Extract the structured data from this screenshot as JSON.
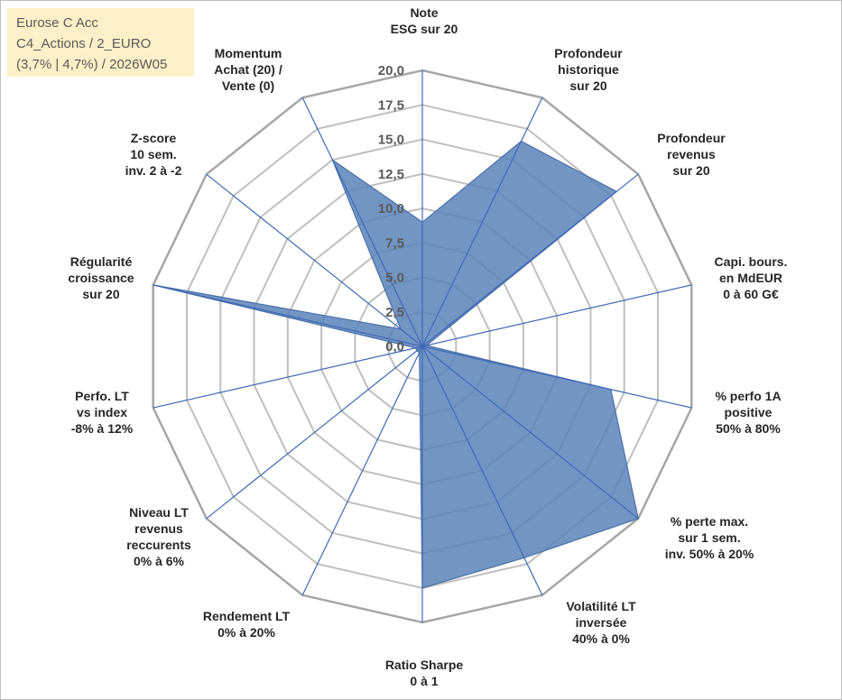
{
  "title": {
    "line1": "Eurose C Acc",
    "line2": "C4_Actions / 2_EURO",
    "line3": "(3,7% | 4,7%) / 2026W05"
  },
  "chart_data": {
    "type": "radar",
    "title": "Eurose C Acc",
    "rmin": 0,
    "rmax": 20,
    "ticks": [
      "0,0",
      "2,5",
      "5,0",
      "7,5",
      "10,0",
      "12,5",
      "15,0",
      "17,5",
      "20,0"
    ],
    "axes": [
      {
        "label": [
          "Note",
          "ESG sur 20"
        ],
        "value": 9.0
      },
      {
        "label": [
          "Profondeur",
          "historique",
          "sur 20"
        ],
        "value": 16.5
      },
      {
        "label": [
          "Profondeur",
          "revenus",
          "sur 20"
        ],
        "value": 18.0
      },
      {
        "label": [
          "Capi. bours.",
          "en MdEUR",
          "0 à 60 G€"
        ],
        "value": 0.3
      },
      {
        "label": [
          "% perfo 1A",
          "positive",
          "50% à 80%"
        ],
        "value": 14.0
      },
      {
        "label": [
          "% perte max.",
          "sur 1 sem.",
          "inv. 50% à 20%"
        ],
        "value": 20.0
      },
      {
        "label": [
          "Volatilité LT",
          "inversée",
          "40% à 0%"
        ],
        "value": 17.0
      },
      {
        "label": [
          "Ratio Sharpe",
          "0 à 1"
        ],
        "value": 17.5
      },
      {
        "label": [
          "Rendement LT",
          "0% à 20%"
        ],
        "value": 0.5
      },
      {
        "label": [
          "Niveau LT",
          "revenus",
          "reccurents",
          "0% à 6%"
        ],
        "value": 0.5
      },
      {
        "label": [
          "Perfo. LT",
          "vs index",
          "-8% à 12%"
        ],
        "value": 0.5
      },
      {
        "label": [
          "Régularité",
          "croissance",
          "sur 20"
        ],
        "value": 20.0
      },
      {
        "label": [
          "Z-score",
          "10 sem.",
          "inv. 2 à -2"
        ],
        "value": 2.0
      },
      {
        "label": [
          "Momentum",
          "Achat (20) /",
          "Vente (0)"
        ],
        "value": 15.0
      }
    ],
    "colors": {
      "fill": "#5b82ba",
      "stroke": "#4a70aa",
      "grid": "#bfbfbf",
      "spoke": "#3f69b6",
      "outer_ring": "#a6a6a6"
    }
  }
}
